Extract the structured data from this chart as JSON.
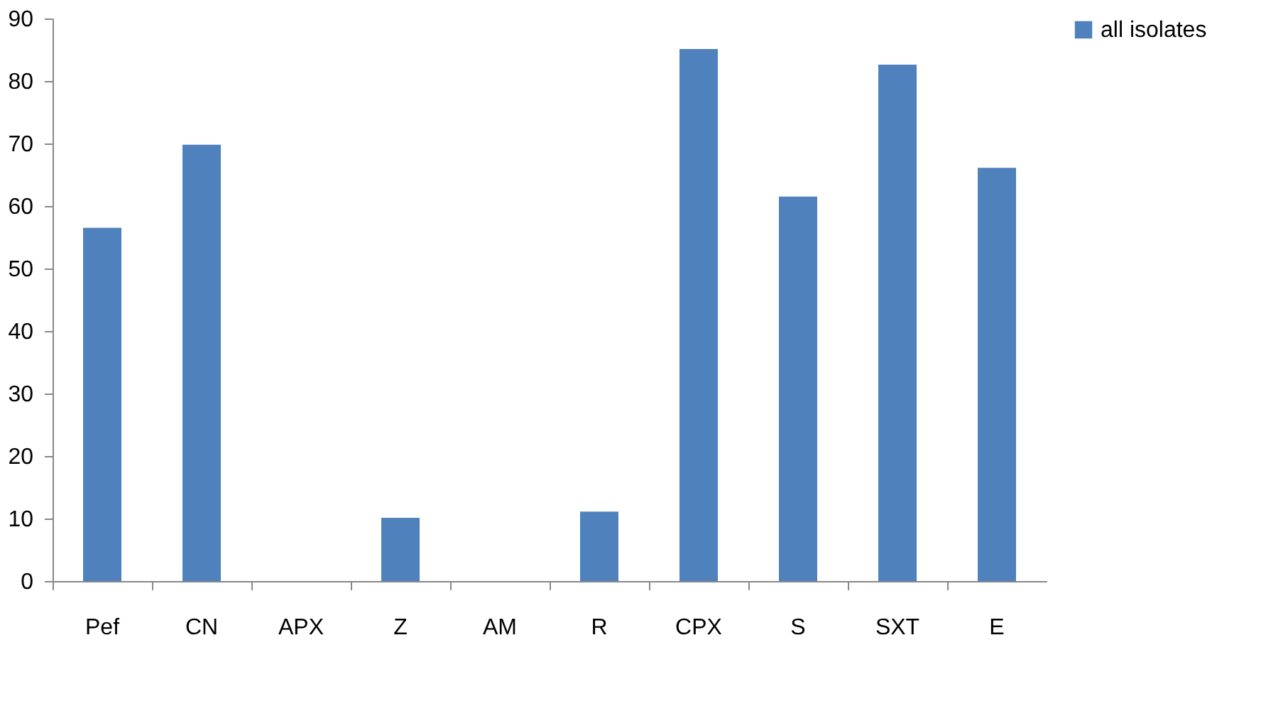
{
  "chart_data": {
    "type": "bar",
    "categories": [
      "Pef",
      "CN",
      "APX",
      "Z",
      "AM",
      "R",
      "CPX",
      "S",
      "SXT",
      "E"
    ],
    "series": [
      {
        "name": "all isolates",
        "color": "#4f81bd",
        "values": [
          56.5,
          69.8,
          0,
          10.1,
          0,
          11.1,
          85.1,
          61.5,
          82.6,
          66.1
        ]
      }
    ],
    "ylim": [
      0,
      90
    ],
    "yticks": [
      0,
      10,
      20,
      30,
      40,
      50,
      60,
      70,
      80,
      90
    ],
    "grid": false,
    "legend": "right"
  }
}
